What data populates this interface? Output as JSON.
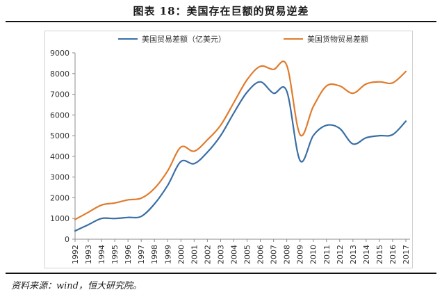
{
  "figure": {
    "title": "图表 18：美国存在巨额的贸易逆差",
    "source": "资料来源：wind，恒大研究院。"
  },
  "chart_data": {
    "type": "line",
    "title": "",
    "xlabel": "",
    "ylabel": "",
    "ylim": [
      0,
      9000
    ],
    "yticks": [
      0,
      1000,
      2000,
      3000,
      4000,
      5000,
      6000,
      7000,
      8000,
      9000
    ],
    "grid": false,
    "legend_position": "top",
    "categories": [
      "1992",
      "1993",
      "1994",
      "1995",
      "1996",
      "1997",
      "1998",
      "1999",
      "2000",
      "2001",
      "2002",
      "2003",
      "2004",
      "2005",
      "2006",
      "2007",
      "2008",
      "2009",
      "2010",
      "2011",
      "2012",
      "2013",
      "2014",
      "2015",
      "2016",
      "2017"
    ],
    "series": [
      {
        "name": "美国贸易差额（亿美元）",
        "color": "#3a6ea5",
        "values": [
          400,
          700,
          1000,
          1000,
          1050,
          1100,
          1700,
          2600,
          3750,
          3650,
          4200,
          5000,
          6100,
          7100,
          7600,
          7050,
          7150,
          3800,
          5000,
          5500,
          5350,
          4600,
          4900,
          5000,
          5050,
          5700
        ]
      },
      {
        "name": "美国货物贸易差额",
        "color": "#e07b2c",
        "values": [
          950,
          1300,
          1650,
          1750,
          1900,
          1980,
          2450,
          3300,
          4450,
          4250,
          4800,
          5500,
          6600,
          7700,
          8350,
          8200,
          8400,
          5050,
          6400,
          7400,
          7400,
          7050,
          7500,
          7600,
          7550,
          8100
        ]
      }
    ]
  }
}
